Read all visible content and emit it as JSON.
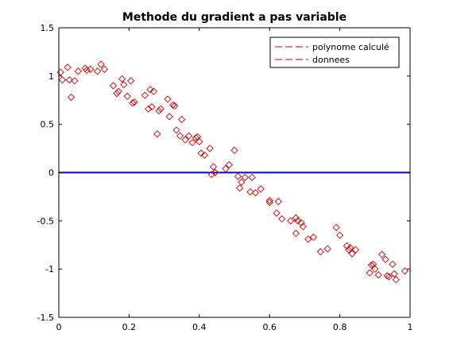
{
  "chart_data": {
    "type": "scatter",
    "title": "Methode du gradient a pas variable",
    "xlabel": "",
    "ylabel": "",
    "xlim": [
      0,
      1
    ],
    "ylim": [
      -1.5,
      1.5
    ],
    "xticks": [
      0,
      0.2,
      0.4,
      0.6,
      0.8,
      1
    ],
    "yticks": [
      -1.5,
      -1,
      -0.5,
      0,
      0.5,
      1,
      1.5
    ],
    "xtick_labels": [
      "0",
      "0.2",
      "0.4",
      "0.6",
      "0.8",
      "1"
    ],
    "ytick_labels": [
      "-1.5",
      "-1",
      "-0.5",
      "0",
      "0.5",
      "1",
      "1.5"
    ],
    "grid": false,
    "legend_position": "top-right",
    "legend": [
      "polynome calculé",
      "donnees"
    ],
    "series": [
      {
        "name": "polynome calculé",
        "style": "line",
        "color": "#0000cc",
        "x": [
          0,
          1
        ],
        "y": [
          0,
          0
        ]
      },
      {
        "name": "donnees",
        "style": "markers",
        "marker": "diamond",
        "color": "#cc0000",
        "points": [
          [
            0.005,
            1.04
          ],
          [
            0.01,
            0.96
          ],
          [
            0.025,
            1.09
          ],
          [
            0.03,
            0.96
          ],
          [
            0.035,
            0.78
          ],
          [
            0.045,
            0.95
          ],
          [
            0.055,
            1.05
          ],
          [
            0.075,
            1.08
          ],
          [
            0.08,
            1.06
          ],
          [
            0.09,
            1.07
          ],
          [
            0.11,
            1.05
          ],
          [
            0.12,
            1.12
          ],
          [
            0.13,
            1.07
          ],
          [
            0.155,
            0.9
          ],
          [
            0.165,
            0.82
          ],
          [
            0.17,
            0.84
          ],
          [
            0.18,
            0.97
          ],
          [
            0.185,
            0.91
          ],
          [
            0.195,
            0.79
          ],
          [
            0.205,
            0.95
          ],
          [
            0.21,
            0.72
          ],
          [
            0.215,
            0.73
          ],
          [
            0.245,
            0.8
          ],
          [
            0.255,
            0.66
          ],
          [
            0.26,
            0.86
          ],
          [
            0.265,
            0.68
          ],
          [
            0.27,
            0.84
          ],
          [
            0.28,
            0.4
          ],
          [
            0.285,
            0.64
          ],
          [
            0.29,
            0.66
          ],
          [
            0.31,
            0.76
          ],
          [
            0.315,
            0.58
          ],
          [
            0.325,
            0.7
          ],
          [
            0.33,
            0.69
          ],
          [
            0.335,
            0.44
          ],
          [
            0.345,
            0.38
          ],
          [
            0.35,
            0.55
          ],
          [
            0.36,
            0.34
          ],
          [
            0.37,
            0.38
          ],
          [
            0.38,
            0.31
          ],
          [
            0.39,
            0.36
          ],
          [
            0.395,
            0.37
          ],
          [
            0.4,
            0.32
          ],
          [
            0.405,
            0.2
          ],
          [
            0.415,
            0.18
          ],
          [
            0.43,
            0.25
          ],
          [
            0.435,
            -0.02
          ],
          [
            0.44,
            0.06
          ],
          [
            0.445,
            0.0
          ],
          [
            0.475,
            0.04
          ],
          [
            0.485,
            0.08
          ],
          [
            0.5,
            0.23
          ],
          [
            0.51,
            -0.04
          ],
          [
            0.515,
            -0.16
          ],
          [
            0.52,
            -0.1
          ],
          [
            0.53,
            -0.05
          ],
          [
            0.545,
            -0.2
          ],
          [
            0.55,
            -0.05
          ],
          [
            0.56,
            -0.21
          ],
          [
            0.575,
            -0.17
          ],
          [
            0.6,
            -0.29
          ],
          [
            0.6,
            -0.31
          ],
          [
            0.62,
            -0.42
          ],
          [
            0.625,
            -0.3
          ],
          [
            0.635,
            -0.48
          ],
          [
            0.66,
            -0.5
          ],
          [
            0.675,
            -0.47
          ],
          [
            0.675,
            -0.63
          ],
          [
            0.68,
            -0.5
          ],
          [
            0.69,
            -0.52
          ],
          [
            0.695,
            -0.56
          ],
          [
            0.71,
            -0.69
          ],
          [
            0.725,
            -0.67
          ],
          [
            0.745,
            -0.82
          ],
          [
            0.765,
            -0.79
          ],
          [
            0.79,
            -0.57
          ],
          [
            0.8,
            -0.65
          ],
          [
            0.82,
            -0.76
          ],
          [
            0.825,
            -0.8
          ],
          [
            0.83,
            -0.78
          ],
          [
            0.835,
            -0.84
          ],
          [
            0.845,
            -0.8
          ],
          [
            0.885,
            -1.04
          ],
          [
            0.89,
            -0.96
          ],
          [
            0.895,
            -0.95
          ],
          [
            0.9,
            -1.0
          ],
          [
            0.91,
            -1.06
          ],
          [
            0.92,
            -0.85
          ],
          [
            0.93,
            -0.9
          ],
          [
            0.935,
            -1.07
          ],
          [
            0.94,
            -1.08
          ],
          [
            0.95,
            -0.95
          ],
          [
            0.955,
            -1.05
          ],
          [
            0.96,
            -1.11
          ],
          [
            0.985,
            -1.02
          ]
        ]
      }
    ]
  }
}
